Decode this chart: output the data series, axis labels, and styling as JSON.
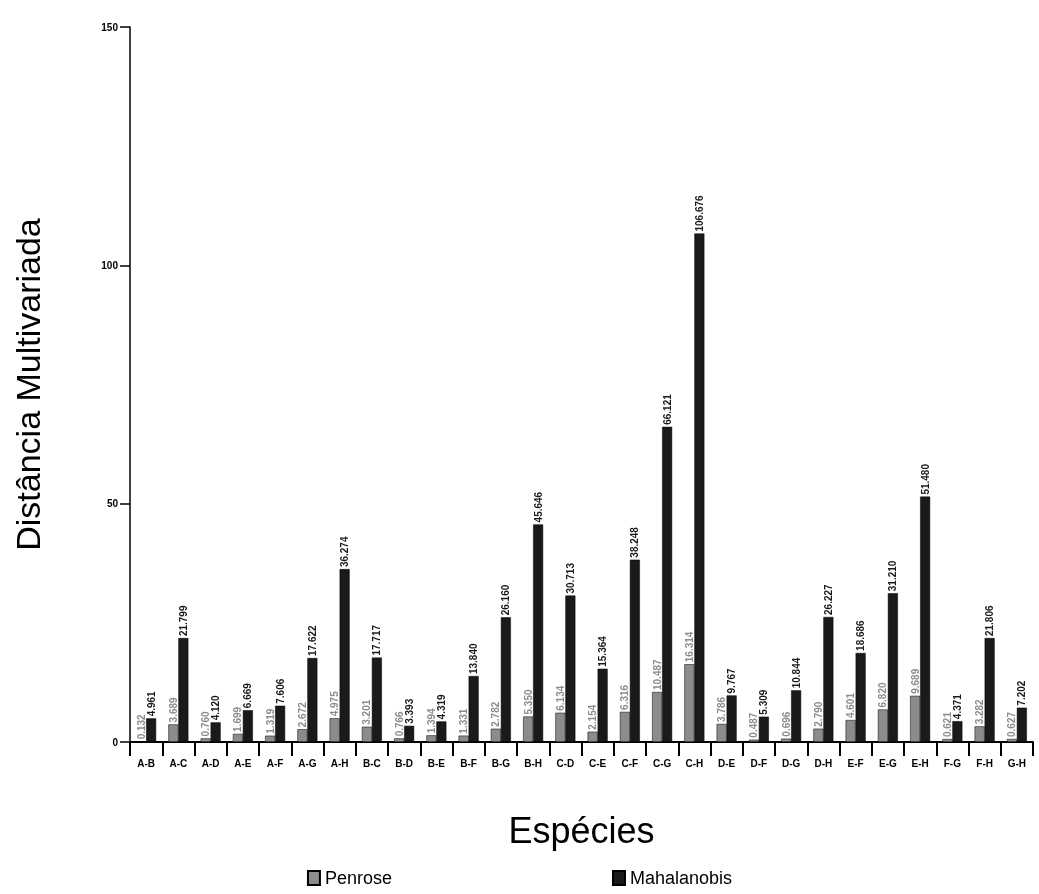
{
  "chart_data": {
    "type": "bar",
    "xlabel": "Espécies",
    "ylabel": "Distância Multivariada",
    "categories": [
      "A-B",
      "A-C",
      "A-D",
      "A-E",
      "A-F",
      "A-G",
      "A-H",
      "B-C",
      "B-D",
      "B-E",
      "B-F",
      "B-G",
      "B-H",
      "C-D",
      "C-E",
      "C-F",
      "C-G",
      "C-H",
      "D-E",
      "D-F",
      "D-G",
      "D-H",
      "E-F",
      "E-G",
      "E-H",
      "F-G",
      "F-H",
      "G-H"
    ],
    "series": [
      {
        "name": "Penrose",
        "color": "#8c8c8c",
        "values": [
          0.132,
          3.689,
          0.76,
          1.699,
          1.319,
          2.672,
          4.975,
          3.201,
          0.766,
          1.394,
          1.331,
          2.782,
          5.35,
          6.134,
          2.154,
          6.316,
          10.487,
          16.314,
          3.786,
          0.487,
          0.696,
          2.79,
          4.601,
          6.82,
          9.689,
          0.621,
          3.282,
          0.627
        ],
        "value_labels": [
          "0.132",
          "3.689",
          "0.760",
          "1.699",
          "1.319",
          "2.672",
          "4.975",
          "3.201",
          "0.766",
          "1.394",
          "1.331",
          "2.782",
          "5.350",
          "6.134",
          "2.154",
          "6.316",
          "10.487",
          "16.314",
          "3.786",
          "0.487",
          "0.696",
          "2.790",
          "4.601",
          "6.820",
          "9.689",
          "0.621",
          "3.282",
          "0.627"
        ]
      },
      {
        "name": "Mahalanobis",
        "color": "#1a1a1a",
        "values": [
          4.961,
          21.799,
          4.12,
          6.669,
          7.606,
          17.622,
          36.274,
          17.717,
          3.393,
          4.319,
          13.84,
          26.16,
          45.646,
          30.713,
          15.364,
          38.248,
          66.121,
          106.676,
          9.767,
          5.309,
          10.844,
          26.227,
          18.686,
          31.21,
          51.48,
          4.371,
          21.806,
          7.202
        ],
        "value_labels": [
          "4.961",
          "21.799",
          "4.120",
          "6.669",
          "7.606",
          "17.622",
          "36.274",
          "17.717",
          "3.393",
          "4.319",
          "13.840",
          "26.160",
          "45.646",
          "30.713",
          "15.364",
          "38.248",
          "66.121",
          "106.676",
          "9.767",
          "5.309",
          "10.844",
          "26.227",
          "18.686",
          "31.210",
          "51.480",
          "4.371",
          "21.806",
          "7.202"
        ]
      }
    ],
    "ylim": [
      0,
      150
    ],
    "yticks": [
      0,
      50,
      100,
      150
    ],
    "grid": false,
    "legend": "bottom"
  }
}
